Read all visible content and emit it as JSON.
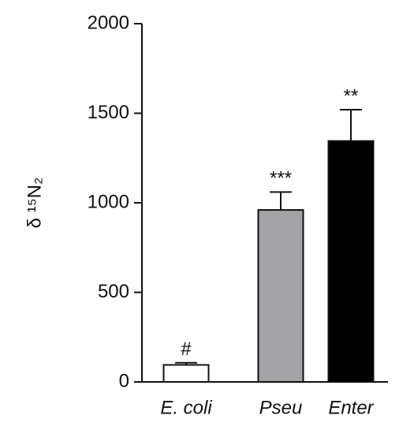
{
  "chart_data": {
    "type": "bar",
    "ylabel": "δ ¹⁵N₂",
    "categories": [
      "E. coli",
      "Pseu",
      "Enter"
    ],
    "values": [
      95,
      960,
      1345
    ],
    "errors": [
      12,
      100,
      175
    ],
    "colors": [
      "#ffffff",
      "#a3a3a5",
      "#000000"
    ],
    "annotations": [
      "#",
      "***",
      "**"
    ],
    "ylim": [
      0,
      2000
    ],
    "yticks": [
      0,
      500,
      1000,
      1500,
      2000
    ]
  }
}
